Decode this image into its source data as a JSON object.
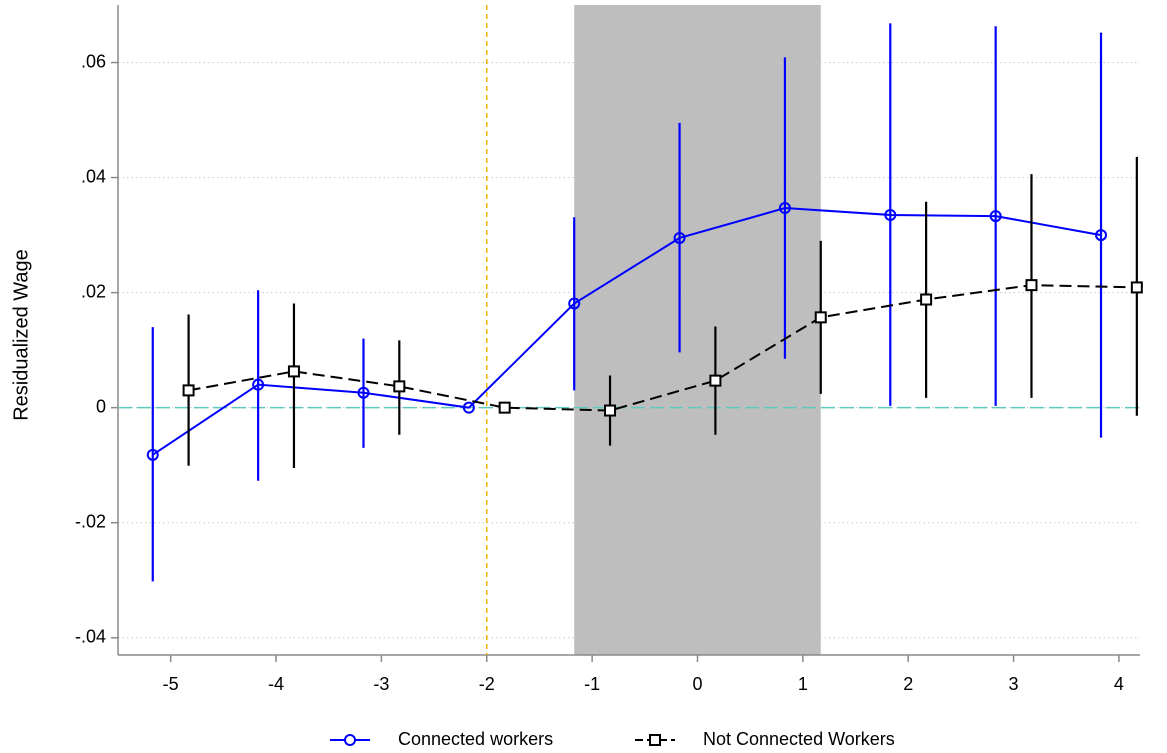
{
  "chart_data": {
    "type": "line",
    "y_label": "Residualized Wage",
    "xlim": [
      -5.5,
      4.2
    ],
    "ylim": [
      -0.043,
      0.07
    ],
    "xticks": [
      -5,
      -4,
      -3,
      -2,
      -1,
      0,
      1,
      2,
      3,
      4
    ],
    "yticks": [
      {
        "value": -0.04,
        "label": "-.04"
      },
      {
        "value": -0.02,
        "label": "-.02"
      },
      0,
      {
        "value": 0.02,
        "label": ".02"
      },
      {
        "value": 0.04,
        "label": ".04"
      },
      {
        "value": 0.06,
        "label": ".06"
      }
    ],
    "grid": true,
    "shade_x": [
      -1.17,
      1.17
    ],
    "vline_x": -2,
    "hline_y": 0,
    "series": [
      {
        "name": "Connected workers",
        "color": "#0000ff",
        "marker": "circle",
        "dash": false,
        "x": [
          -5.17,
          -4.17,
          -3.17,
          -2.17,
          -1.17,
          -0.17,
          0.83,
          1.83,
          2.83,
          3.83
        ],
        "values": [
          -0.0082,
          0.004,
          0.0026,
          0,
          0.0181,
          0.0295,
          0.0347,
          0.0335,
          0.0333,
          0.03
        ],
        "lower": [
          -0.0302,
          -0.0127,
          -0.007,
          null,
          0.003,
          0.0096,
          0.0085,
          0.0003,
          0.0003,
          -0.0052
        ],
        "upper": [
          0.014,
          0.0204,
          0.012,
          null,
          0.0331,
          0.0495,
          0.0609,
          0.0668,
          0.0663,
          0.0652
        ]
      },
      {
        "name": "Not Connected Workers",
        "color": "#000000",
        "marker": "square",
        "dash": true,
        "x": [
          -4.83,
          -3.83,
          -2.83,
          -1.83,
          -0.83,
          0.17,
          1.17,
          2.17,
          3.17,
          4.17
        ],
        "values": [
          0.003,
          0.0063,
          0.0037,
          0,
          -0.0005,
          0.0047,
          0.0157,
          0.0188,
          0.0213,
          0.0209
        ],
        "lower": [
          -0.0101,
          -0.0105,
          -0.0047,
          null,
          -0.0066,
          -0.0047,
          0.0024,
          0.0017,
          0.0017,
          -0.0014
        ],
        "upper": [
          0.0162,
          0.0181,
          0.0117,
          null,
          0.0056,
          0.0141,
          0.029,
          0.0358,
          0.0406,
          0.0436
        ]
      }
    ]
  }
}
